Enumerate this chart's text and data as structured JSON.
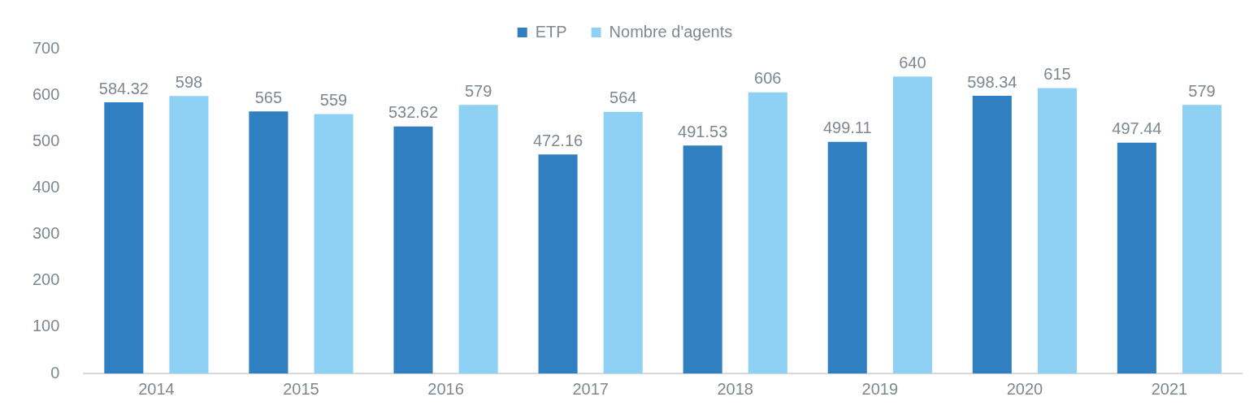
{
  "chart_data": {
    "type": "bar",
    "categories": [
      "2014",
      "2015",
      "2016",
      "2017",
      "2018",
      "2019",
      "2020",
      "2021"
    ],
    "series": [
      {
        "name": "ETP",
        "color": "#2f7fc1",
        "values": [
          584.32,
          565,
          532.62,
          472.16,
          491.53,
          499.11,
          598.34,
          497.44
        ]
      },
      {
        "name": "Nombre d'agents",
        "color": "#8fd0f5",
        "values": [
          598,
          559,
          579,
          564,
          606,
          640,
          615,
          579
        ]
      }
    ],
    "ylim": [
      0,
      700
    ],
    "yticks": [
      0,
      100,
      200,
      300,
      400,
      500,
      600,
      700
    ],
    "grid": false,
    "legend": "top",
    "data_labels": true
  }
}
